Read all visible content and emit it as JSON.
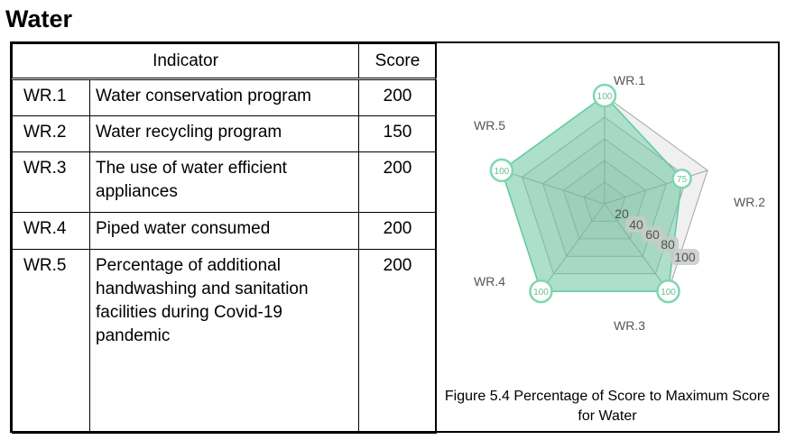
{
  "section_title": "Water",
  "table": {
    "header": {
      "indicator": "Indicator",
      "score": "Score"
    },
    "rows": [
      {
        "code": "WR.1",
        "name": "Water conservation program",
        "score": "200"
      },
      {
        "code": "WR.2",
        "name": "Water recycling program",
        "score": "150"
      },
      {
        "code": "WR.3",
        "name": "The use of water efficient appliances",
        "score": "200"
      },
      {
        "code": "WR.4",
        "name": "Piped water consumed",
        "score": "200"
      },
      {
        "code": "WR.5",
        "name": "Percentage of additional handwashing and sanitation facilities during Covid-19 pandemic",
        "score": "200"
      }
    ]
  },
  "figure_caption": "Figure 5.4 Percentage of Score to Maximum Score for Water",
  "colors": {
    "fill": "#5fcaa0",
    "grid_fill": "#b4b9b4",
    "badge_border": "#7fd6b2",
    "badge_text": "#6abd9a"
  },
  "chart_data": {
    "type": "radar",
    "axes": [
      "WR.1",
      "WR.2",
      "WR.3",
      "WR.4",
      "WR.5"
    ],
    "values": [
      100,
      75,
      100,
      100,
      100
    ],
    "point_labels": [
      "100",
      "75",
      "100",
      "100",
      "100"
    ],
    "scale": {
      "min": 0,
      "max": 100,
      "ticks": [
        20,
        40,
        60,
        80,
        100
      ],
      "tick_labels": [
        "20",
        "40",
        "60",
        "80",
        "100"
      ]
    }
  }
}
